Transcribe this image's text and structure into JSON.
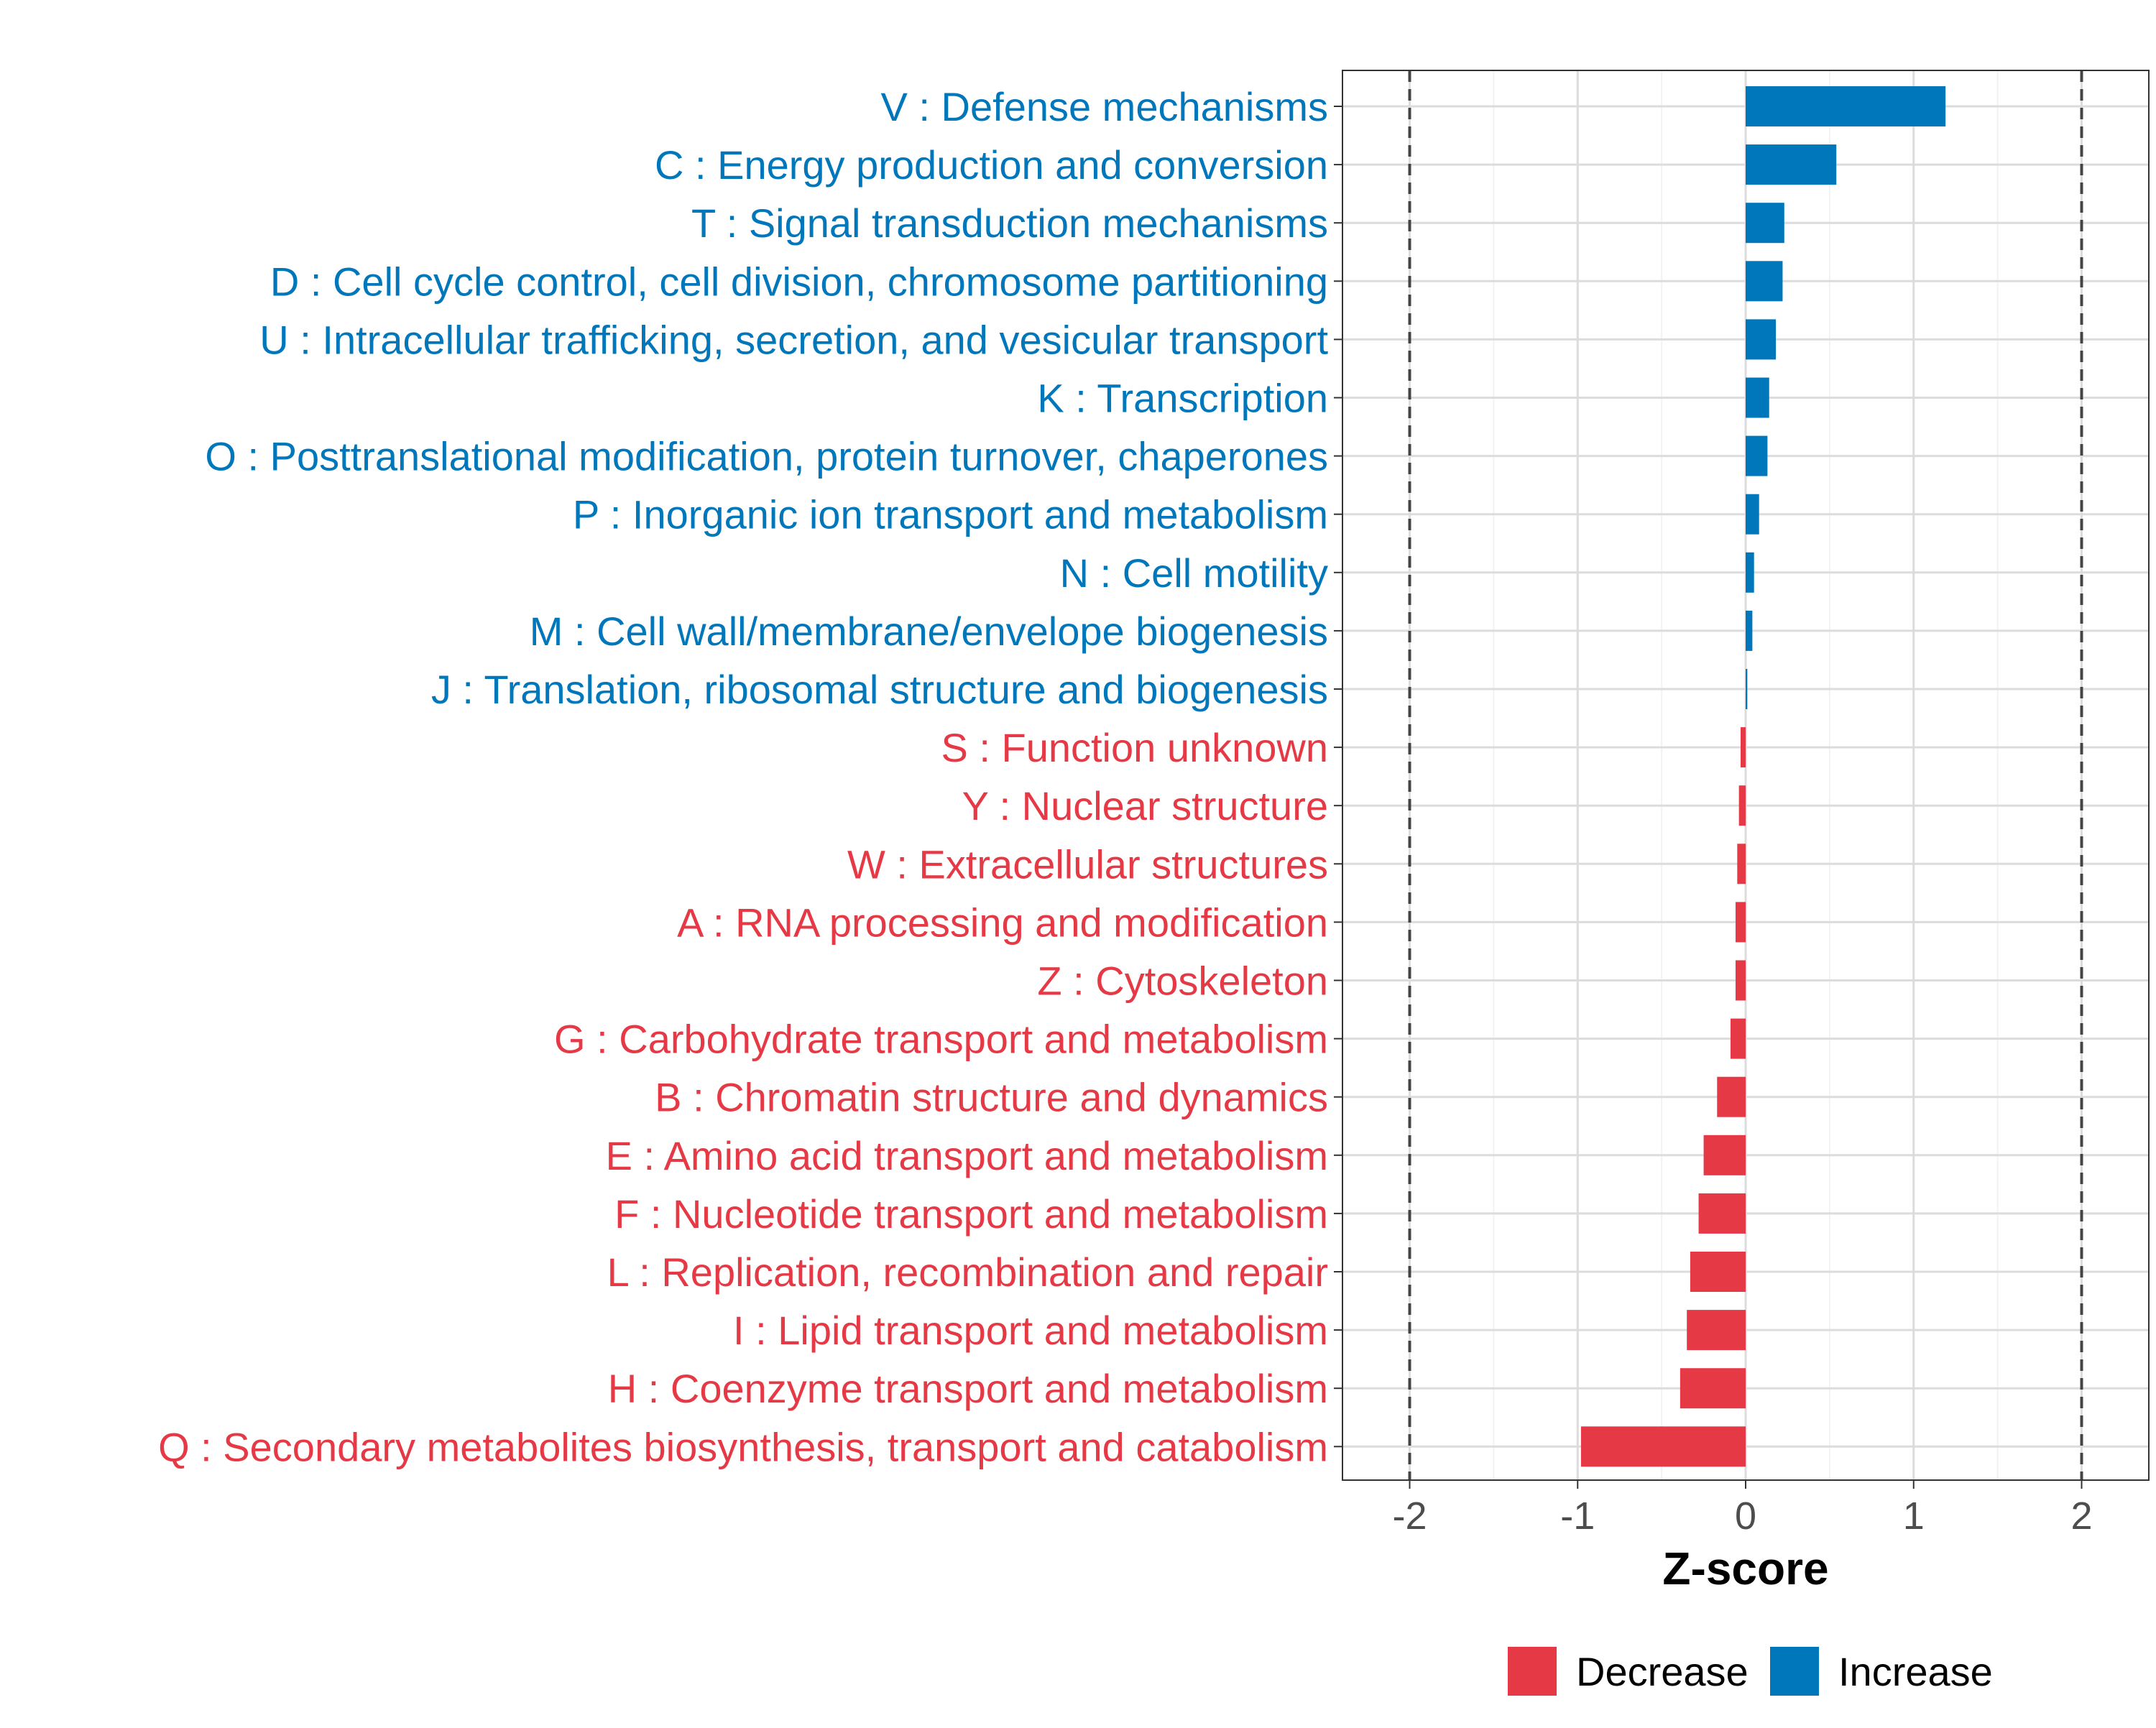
{
  "chart_data": {
    "type": "bar",
    "orientation": "horizontal",
    "xlabel": "Z-score",
    "xlim": [
      -2.4,
      2.4
    ],
    "xticks": [
      -2,
      -1,
      0,
      1,
      2
    ],
    "xtick_labels": [
      "-2",
      "-1",
      "0",
      "1",
      "2"
    ],
    "reference_lines": [
      -2,
      2
    ],
    "grid": true,
    "legend_position": "bottom",
    "legend": [
      {
        "label": "Decrease",
        "color": "#E63946"
      },
      {
        "label": "Increase",
        "color": "#0077BB"
      }
    ],
    "colors": {
      "increase": "#0077BB",
      "decrease": "#E63946"
    },
    "categories": [
      {
        "label": "V : Defense mechanisms",
        "value": 1.19,
        "direction": "increase"
      },
      {
        "label": "C : Energy production and conversion",
        "value": 0.54,
        "direction": "increase"
      },
      {
        "label": "T : Signal transduction mechanisms",
        "value": 0.23,
        "direction": "increase"
      },
      {
        "label": "D : Cell cycle control, cell division, chromosome partitioning",
        "value": 0.22,
        "direction": "increase"
      },
      {
        "label": "U : Intracellular trafficking, secretion, and vesicular transport",
        "value": 0.18,
        "direction": "increase"
      },
      {
        "label": "K : Transcription",
        "value": 0.14,
        "direction": "increase"
      },
      {
        "label": "O : Posttranslational modification, protein turnover, chaperones",
        "value": 0.13,
        "direction": "increase"
      },
      {
        "label": "P : Inorganic ion transport and metabolism",
        "value": 0.08,
        "direction": "increase"
      },
      {
        "label": "N : Cell motility",
        "value": 0.05,
        "direction": "increase"
      },
      {
        "label": "M : Cell wall/membrane/envelope biogenesis",
        "value": 0.04,
        "direction": "increase"
      },
      {
        "label": "J : Translation, ribosomal structure and biogenesis",
        "value": 0.01,
        "direction": "increase"
      },
      {
        "label": "S : Function unknown",
        "value": -0.03,
        "direction": "decrease"
      },
      {
        "label": "Y : Nuclear structure",
        "value": -0.04,
        "direction": "decrease"
      },
      {
        "label": "W : Extracellular structures",
        "value": -0.05,
        "direction": "decrease"
      },
      {
        "label": "A : RNA processing and modification",
        "value": -0.06,
        "direction": "decrease"
      },
      {
        "label": "Z : Cytoskeleton",
        "value": -0.06,
        "direction": "decrease"
      },
      {
        "label": "G : Carbohydrate transport and metabolism",
        "value": -0.09,
        "direction": "decrease"
      },
      {
        "label": "B : Chromatin structure and dynamics",
        "value": -0.17,
        "direction": "decrease"
      },
      {
        "label": "E : Amino acid transport and metabolism",
        "value": -0.25,
        "direction": "decrease"
      },
      {
        "label": "F : Nucleotide transport and metabolism",
        "value": -0.28,
        "direction": "decrease"
      },
      {
        "label": "L : Replication, recombination and repair",
        "value": -0.33,
        "direction": "decrease"
      },
      {
        "label": "I : Lipid transport and metabolism",
        "value": -0.35,
        "direction": "decrease"
      },
      {
        "label": "H : Coenzyme transport and metabolism",
        "value": -0.39,
        "direction": "decrease"
      },
      {
        "label": "Q : Secondary metabolites biosynthesis, transport and catabolism",
        "value": -0.98,
        "direction": "decrease"
      }
    ]
  }
}
